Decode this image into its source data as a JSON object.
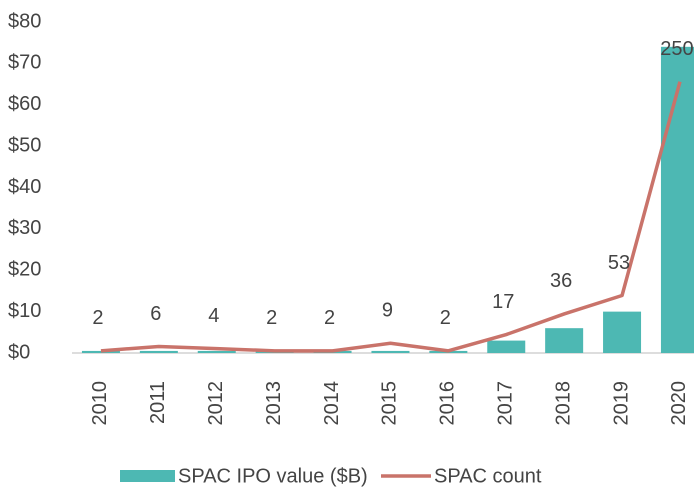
{
  "chart_data": {
    "type": "bar_line",
    "categories": [
      "2010",
      "2011",
      "2012",
      "2013",
      "2014",
      "2015",
      "2016",
      "2017",
      "2018",
      "2019",
      "2020"
    ],
    "series": [
      {
        "name": "SPAC IPO value ($B)",
        "color": "#4db8b3",
        "type": "bar",
        "values": [
          0.5,
          0.5,
          0.5,
          0.5,
          0.5,
          0.5,
          0.5,
          3,
          6,
          10,
          74
        ]
      },
      {
        "name": "SPAC count",
        "color": "#c9736a",
        "type": "line",
        "axis": "y2",
        "values": [
          2,
          6,
          4,
          2,
          2,
          9,
          2,
          17,
          36,
          53,
          250
        ]
      }
    ],
    "ylim": [
      0,
      80
    ],
    "yticks": [
      {
        "value": 0,
        "label": "$0"
      },
      {
        "value": 10,
        "label": "$10"
      },
      {
        "value": 20,
        "label": "$20"
      },
      {
        "value": 30,
        "label": "$30"
      },
      {
        "value": 40,
        "label": "$40"
      },
      {
        "value": 50,
        "label": "$50"
      },
      {
        "value": 60,
        "label": "$60"
      },
      {
        "value": 70,
        "label": "$70"
      },
      {
        "value": 80,
        "label": "$80"
      }
    ],
    "y2lim": [
      0,
      305
    ],
    "grid": false,
    "legend": "bottom"
  }
}
